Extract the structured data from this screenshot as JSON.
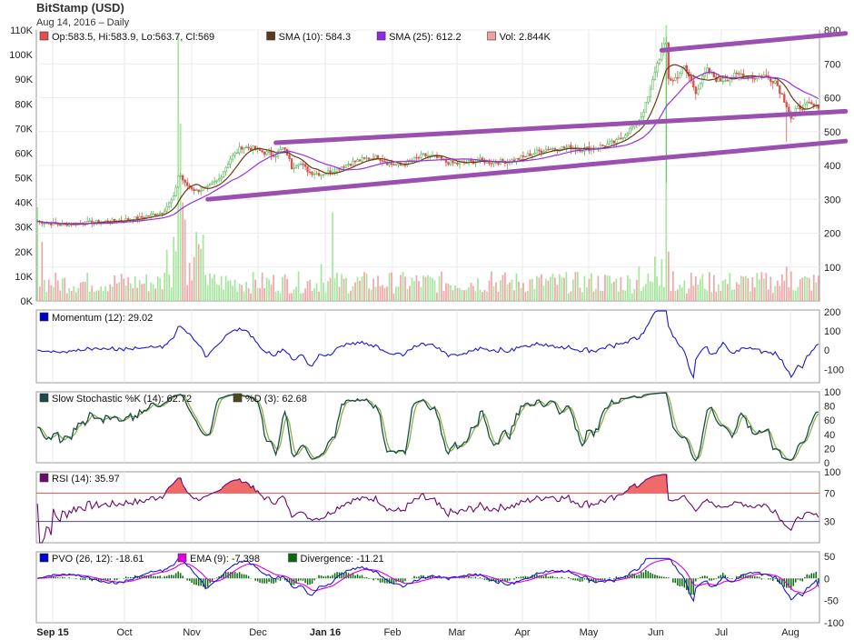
{
  "header": {
    "title": "BitStamp (USD)",
    "subtitle": "Aug 14, 2016 – Daily"
  },
  "chart_data": [
    {
      "type": "candlestick",
      "panel": "price",
      "legend": [
        {
          "text": "Op:583.5, Hi:583.9, Lo:563.7, Cl:569",
          "color": "#e05050"
        },
        {
          "text": "SMA (10): 584.3",
          "color": "#5a3a1a"
        },
        {
          "text": "SMA (25): 612.2",
          "color": "#8a2be2"
        },
        {
          "text": "Vol: 2.844K",
          "color": "#f0a0a0"
        }
      ],
      "x_ticks": [
        "Sep 15",
        "Oct",
        "Nov",
        "Dec",
        "Jan 16",
        "Feb",
        "Mar",
        "Apr",
        "May",
        "Jun",
        "Jul",
        "Aug"
      ],
      "y_right_ticks": [
        100,
        200,
        300,
        400,
        500,
        600,
        700,
        800
      ],
      "y_left_ticks": [
        "0K",
        "10K",
        "20K",
        "30K",
        "40K",
        "50K",
        "60K",
        "70K",
        "80K",
        "90K",
        "100K",
        "110K"
      ],
      "ylim": [
        0,
        800
      ],
      "volume_ylim": [
        0,
        110000
      ],
      "close_anchors": [
        [
          0,
          235
        ],
        [
          10,
          225
        ],
        [
          20,
          230
        ],
        [
          35,
          237
        ],
        [
          45,
          245
        ],
        [
          55,
          262
        ],
        [
          60,
          305
        ],
        [
          62,
          370
        ],
        [
          63,
          370
        ],
        [
          65,
          345
        ],
        [
          70,
          325
        ],
        [
          75,
          335
        ],
        [
          80,
          360
        ],
        [
          85,
          420
        ],
        [
          90,
          455
        ],
        [
          95,
          450
        ],
        [
          100,
          438
        ],
        [
          105,
          432
        ],
        [
          108,
          450
        ],
        [
          110,
          435
        ],
        [
          112,
          395
        ],
        [
          115,
          410
        ],
        [
          120,
          380
        ],
        [
          125,
          375
        ],
        [
          130,
          385
        ],
        [
          135,
          400
        ],
        [
          140,
          412
        ],
        [
          145,
          420
        ],
        [
          150,
          425
        ],
        [
          155,
          405
        ],
        [
          160,
          400
        ],
        [
          165,
          415
        ],
        [
          170,
          430
        ],
        [
          175,
          425
        ],
        [
          180,
          410
        ],
        [
          185,
          405
        ],
        [
          190,
          410
        ],
        [
          195,
          415
        ],
        [
          200,
          410
        ],
        [
          205,
          412
        ],
        [
          210,
          415
        ],
        [
          215,
          428
        ],
        [
          220,
          440
        ],
        [
          225,
          450
        ],
        [
          230,
          450
        ],
        [
          235,
          455
        ],
        [
          240,
          448
        ],
        [
          245,
          452
        ],
        [
          250,
          460
        ],
        [
          255,
          470
        ],
        [
          260,
          500
        ],
        [
          265,
          530
        ],
        [
          268,
          580
        ],
        [
          270,
          620
        ],
        [
          272,
          680
        ],
        [
          275,
          740
        ],
        [
          277,
          760
        ],
        [
          278,
          660
        ],
        [
          280,
          650
        ],
        [
          285,
          690
        ],
        [
          290,
          620
        ],
        [
          295,
          680
        ],
        [
          300,
          650
        ],
        [
          305,
          660
        ],
        [
          310,
          670
        ],
        [
          315,
          660
        ],
        [
          320,
          665
        ],
        [
          325,
          650
        ],
        [
          330,
          580
        ],
        [
          332,
          540
        ],
        [
          335,
          570
        ],
        [
          340,
          580
        ],
        [
          342,
          575
        ],
        [
          344,
          569
        ]
      ],
      "volume_spikes": [
        [
          0,
          38000
        ],
        [
          2,
          24000
        ],
        [
          60,
          26000
        ],
        [
          62,
          108000
        ],
        [
          63,
          72000
        ],
        [
          64,
          40000
        ],
        [
          65,
          33000
        ],
        [
          70,
          28000
        ],
        [
          125,
          15000
        ],
        [
          130,
          36000
        ],
        [
          200,
          12000
        ],
        [
          265,
          14000
        ],
        [
          272,
          18000
        ],
        [
          275,
          17000
        ],
        [
          277,
          112000
        ],
        [
          278,
          20000
        ],
        [
          280,
          12000
        ],
        [
          290,
          10000
        ],
        [
          330,
          14000
        ],
        [
          332,
          12000
        ]
      ],
      "trendlines": [
        {
          "from": [
            105,
            467
          ],
          "to": [
            344,
            550
          ]
        },
        {
          "from": [
            75,
            300
          ],
          "to": [
            344,
            462
          ]
        },
        {
          "from": [
            275,
            740
          ],
          "to": [
            344,
            780
          ]
        }
      ]
    },
    {
      "type": "line",
      "panel": "momentum",
      "legend": [
        {
          "text": "Momentum (12): 29.02",
          "color": "#0000cc"
        }
      ],
      "y_ticks": [
        200,
        100,
        0,
        -100
      ],
      "ylim": [
        -170,
        210
      ]
    },
    {
      "type": "line",
      "panel": "stochastic",
      "legend": [
        {
          "text": "Slow Stochastic %K (14): 62.72",
          "color": "#1a4a4a"
        },
        {
          "text": "%D (3): 62.68",
          "color": "#4a4a1a"
        }
      ],
      "y_ticks": [
        100,
        80,
        60,
        40,
        20,
        0
      ],
      "ylim": [
        0,
        100
      ]
    },
    {
      "type": "line",
      "panel": "rsi",
      "legend": [
        {
          "text": "RSI (14): 35.97",
          "color": "#6a0a6a"
        }
      ],
      "y_ticks": [
        100,
        70,
        30
      ],
      "overbought": 70,
      "oversold": 30,
      "ylim": [
        0,
        100
      ]
    },
    {
      "type": "line",
      "panel": "pvo",
      "legend": [
        {
          "text": "PVO (26, 12): -18.61",
          "color": "#0000cc"
        },
        {
          "text": "EMA (9): -7.398",
          "color": "#e000e0"
        },
        {
          "text": "Divergence: -11.21",
          "color": "#0a6a0a"
        }
      ],
      "y_ticks": [
        50,
        0,
        -50,
        -100
      ],
      "ylim": [
        -100,
        60
      ]
    }
  ],
  "colors": {
    "up": "#5cb85c",
    "down": "#d9534f",
    "sma10": "#6b3b12",
    "sma25": "#9b30e0",
    "trend": "#9b4fb0",
    "volume_up": "#a8e6a0",
    "volume_down": "#f0a8a8"
  }
}
